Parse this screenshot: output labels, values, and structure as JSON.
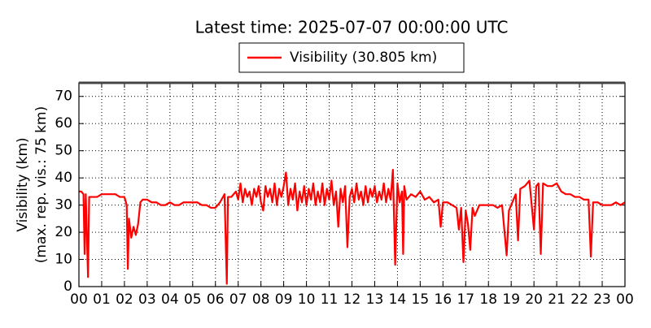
{
  "chart_data": {
    "type": "line",
    "title": "Latest time: 2025-07-07 00:00:00 UTC",
    "ylabel": [
      "Visibility (km)",
      "(max. rep. vis.: 75 km)"
    ],
    "grid": true,
    "legend": "upper center",
    "xlim": [
      0,
      24
    ],
    "ylim": [
      0,
      75
    ],
    "yticks": [
      0,
      10,
      20,
      30,
      40,
      50,
      60,
      70
    ],
    "xticks": [
      {
        "value": 0,
        "label": "00"
      },
      {
        "value": 1,
        "label": "01"
      },
      {
        "value": 2,
        "label": "02"
      },
      {
        "value": 3,
        "label": "03"
      },
      {
        "value": 4,
        "label": "04"
      },
      {
        "value": 5,
        "label": "05"
      },
      {
        "value": 6,
        "label": "06"
      },
      {
        "value": 7,
        "label": "07"
      },
      {
        "value": 8,
        "label": "08"
      },
      {
        "value": 9,
        "label": "09"
      },
      {
        "value": 10,
        "label": "10"
      },
      {
        "value": 11,
        "label": "11"
      },
      {
        "value": 12,
        "label": "12"
      },
      {
        "value": 13,
        "label": "13"
      },
      {
        "value": 14,
        "label": "14"
      },
      {
        "value": 15,
        "label": "15"
      },
      {
        "value": 16,
        "label": "16"
      },
      {
        "value": 17,
        "label": "17"
      },
      {
        "value": 18,
        "label": "18"
      },
      {
        "value": 19,
        "label": "19"
      },
      {
        "value": 20,
        "label": "20"
      },
      {
        "value": 21,
        "label": "21"
      },
      {
        "value": 22,
        "label": "22"
      },
      {
        "value": 23,
        "label": "23"
      },
      {
        "value": 24,
        "label": "00"
      }
    ],
    "x": [
      0,
      0.1,
      0.2,
      0.25,
      0.3,
      0.4,
      0.45,
      0.6,
      0.8,
      1.0,
      1.2,
      1.4,
      1.6,
      1.8,
      2.0,
      2.1,
      2.15,
      2.2,
      2.3,
      2.4,
      2.5,
      2.6,
      2.7,
      2.8,
      3.0,
      3.2,
      3.4,
      3.6,
      3.8,
      4.0,
      4.2,
      4.4,
      4.6,
      4.8,
      5.0,
      5.2,
      5.4,
      5.6,
      5.8,
      6.0,
      6.2,
      6.4,
      6.5,
      6.55,
      6.7,
      6.9,
      7.0,
      7.1,
      7.2,
      7.3,
      7.4,
      7.5,
      7.6,
      7.7,
      7.8,
      7.9,
      8.0,
      8.1,
      8.2,
      8.3,
      8.4,
      8.5,
      8.6,
      8.7,
      8.8,
      8.9,
      9.0,
      9.1,
      9.2,
      9.3,
      9.4,
      9.5,
      9.6,
      9.7,
      9.8,
      9.9,
      10.0,
      10.1,
      10.2,
      10.3,
      10.4,
      10.5,
      10.6,
      10.7,
      10.8,
      10.9,
      11.0,
      11.1,
      11.2,
      11.3,
      11.4,
      11.5,
      11.6,
      11.7,
      11.8,
      11.9,
      12.0,
      12.1,
      12.2,
      12.3,
      12.4,
      12.5,
      12.6,
      12.7,
      12.8,
      12.9,
      13.0,
      13.1,
      13.2,
      13.3,
      13.4,
      13.5,
      13.6,
      13.7,
      13.8,
      13.9,
      14.0,
      14.1,
      14.2,
      14.25,
      14.3,
      14.4,
      14.6,
      14.8,
      15.0,
      15.2,
      15.4,
      15.6,
      15.8,
      15.9,
      16.0,
      16.2,
      16.4,
      16.6,
      16.7,
      16.8,
      16.9,
      17.0,
      17.1,
      17.2,
      17.3,
      17.4,
      17.6,
      17.8,
      18.0,
      18.2,
      18.4,
      18.6,
      18.8,
      18.9,
      19.0,
      19.2,
      19.3,
      19.4,
      19.6,
      19.8,
      20.0,
      20.1,
      20.2,
      20.3,
      20.4,
      20.6,
      20.8,
      21.0,
      21.2,
      21.4,
      21.6,
      21.8,
      22.0,
      22.2,
      22.4,
      22.5,
      22.6,
      22.8,
      23.0,
      23.2,
      23.4,
      23.6,
      23.8,
      24.0
    ],
    "series": [
      {
        "name": "Visibility (30.805 km)",
        "color": "#ff0000",
        "values": [
          35,
          35,
          34,
          12,
          34,
          3.5,
          33,
          33,
          33,
          34,
          34,
          34,
          34,
          33,
          33,
          30,
          6.5,
          25,
          18,
          22,
          19,
          23,
          31,
          32,
          32,
          31,
          31,
          30,
          30,
          31,
          30,
          30,
          31,
          31,
          31,
          31,
          30,
          30,
          29,
          29,
          31,
          34,
          1,
          33,
          33,
          35,
          32,
          38,
          31,
          36,
          33,
          35,
          30,
          36,
          33,
          37,
          31,
          28,
          37,
          33,
          36,
          31,
          38,
          30,
          36,
          33,
          37,
          42,
          30,
          36,
          32,
          38,
          28,
          35,
          31,
          37,
          30,
          36,
          32,
          38,
          30,
          35,
          31,
          38,
          30,
          36,
          32,
          39,
          30,
          35,
          22,
          36,
          31,
          37,
          14.5,
          33,
          36,
          31,
          38,
          32,
          35,
          30,
          37,
          31,
          36,
          33,
          37,
          31,
          35,
          32,
          38,
          31,
          36,
          32,
          43,
          8,
          38,
          31,
          35,
          12,
          37,
          32,
          34,
          33,
          35,
          32,
          33,
          31,
          32,
          22,
          31,
          31,
          30,
          29,
          21,
          29,
          9,
          28,
          23,
          13.5,
          29,
          26,
          30,
          30,
          30,
          30,
          29,
          30,
          11.5,
          28,
          30,
          34,
          17,
          36,
          37,
          39,
          21,
          37,
          38,
          12,
          38,
          37,
          37,
          38,
          35,
          34,
          34,
          33,
          33,
          32,
          32,
          11,
          31,
          31,
          30,
          30,
          30,
          31,
          30,
          31
        ]
      }
    ]
  }
}
